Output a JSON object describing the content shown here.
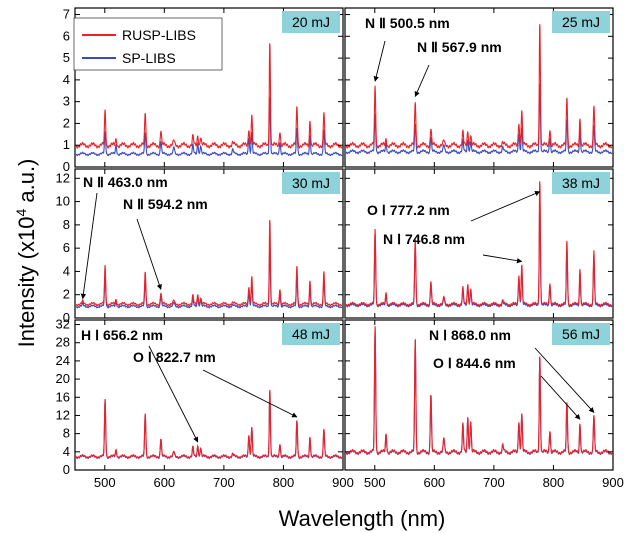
{
  "figure": {
    "xlabel": "Wavelength (nm)",
    "ylabel": "Intensity (x10",
    "ylabel_sup": "4",
    "ylabel_suffix": " a.u.)",
    "legend": [
      {
        "label": "RUSP-LIBS",
        "color": "#e8232a"
      },
      {
        "label": "SP-LIBS",
        "color": "#3b4bbd"
      }
    ],
    "energy_badge_color": "#8ed3d9"
  },
  "chart_data": [
    {
      "type": "line",
      "energy": "20 mJ",
      "xlim": [
        450,
        900
      ],
      "ylim": [
        0,
        7.3
      ],
      "yticks": [
        0,
        1,
        2,
        3,
        4,
        5,
        6,
        7
      ],
      "xticks": [
        500,
        600,
        700,
        800,
        900
      ],
      "baseline": {
        "RUSP-LIBS": 1.0,
        "SP-LIBS": 0.6
      },
      "peaks": [
        [
          500.5,
          2.6,
          1.6
        ],
        [
          519,
          1.3,
          1.0
        ],
        [
          567.9,
          2.5,
          1.6
        ],
        [
          594.2,
          1.7,
          1.2
        ],
        [
          616,
          1.2,
          0.9
        ],
        [
          648,
          1.4,
          1.0
        ],
        [
          656.2,
          1.5,
          1.1
        ],
        [
          661,
          1.4,
          1.0
        ],
        [
          715,
          1.1,
          0.8
        ],
        [
          742,
          1.8,
          1.4
        ],
        [
          746.8,
          2.4,
          1.6
        ],
        [
          777.2,
          5.8,
          3.3
        ],
        [
          794,
          1.7,
          1.2
        ],
        [
          822.7,
          2.8,
          1.8
        ],
        [
          844.6,
          2.2,
          1.5
        ],
        [
          868,
          2.5,
          1.7
        ]
      ],
      "annotations": []
    },
    {
      "type": "line",
      "energy": "25 mJ",
      "xlim": [
        450,
        900
      ],
      "ylim": [
        0,
        7.3
      ],
      "yticks": [
        0,
        1,
        2,
        3,
        4,
        5,
        6,
        7
      ],
      "xticks": [
        500,
        600,
        700,
        800,
        900
      ],
      "baseline": {
        "RUSP-LIBS": 1.0,
        "SP-LIBS": 0.7
      },
      "peaks": [
        [
          500.5,
          3.7,
          2.4
        ],
        [
          519,
          1.3,
          1.1
        ],
        [
          567.9,
          3.0,
          2.0
        ],
        [
          594.2,
          1.8,
          1.4
        ],
        [
          616,
          1.2,
          1.0
        ],
        [
          648,
          1.6,
          1.2
        ],
        [
          656.2,
          1.7,
          1.3
        ],
        [
          661,
          1.5,
          1.2
        ],
        [
          715,
          1.1,
          0.9
        ],
        [
          742,
          2.1,
          1.6
        ],
        [
          746.8,
          2.6,
          1.8
        ],
        [
          777.2,
          6.7,
          3.9
        ],
        [
          794,
          1.8,
          1.4
        ],
        [
          822.7,
          3.2,
          2.2
        ],
        [
          844.6,
          2.3,
          1.7
        ],
        [
          868,
          2.8,
          1.9
        ]
      ],
      "annotations": [
        {
          "text": "N Ⅱ 500.5 nm",
          "x": 500.5,
          "y": 3.8
        },
        {
          "text": "N Ⅱ 567.9 nm",
          "x": 567.9,
          "y": 3.1
        }
      ]
    },
    {
      "type": "line",
      "energy": "30 mJ",
      "xlim": [
        450,
        900
      ],
      "ylim": [
        0,
        12.8
      ],
      "yticks": [
        0,
        2,
        4,
        6,
        8,
        10,
        12
      ],
      "xticks": [
        500,
        600,
        700,
        800,
        900
      ],
      "baseline": {
        "RUSP-LIBS": 1.2,
        "SP-LIBS": 1.0
      },
      "peaks": [
        [
          463,
          1.4,
          1.2
        ],
        [
          500.5,
          4.5,
          3.6
        ],
        [
          519,
          1.6,
          1.4
        ],
        [
          567.9,
          4.0,
          3.2
        ],
        [
          594.2,
          2.2,
          1.9
        ],
        [
          616,
          1.5,
          1.3
        ],
        [
          648,
          1.9,
          1.6
        ],
        [
          656.2,
          2.1,
          1.8
        ],
        [
          661,
          1.8,
          1.6
        ],
        [
          715,
          1.3,
          1.1
        ],
        [
          742,
          2.8,
          2.2
        ],
        [
          746.8,
          3.6,
          2.9
        ],
        [
          777.2,
          8.6,
          6.4
        ],
        [
          794,
          2.6,
          2.1
        ],
        [
          822.7,
          4.5,
          3.6
        ],
        [
          844.6,
          3.3,
          2.7
        ],
        [
          868,
          4.0,
          3.2
        ]
      ],
      "annotations": [
        {
          "text": "N Ⅱ 463.0 nm",
          "x": 463,
          "y": 1.4
        },
        {
          "text": "N Ⅱ 594.2 nm",
          "x": 594.2,
          "y": 2.2
        }
      ]
    },
    {
      "type": "line",
      "energy": "38 mJ",
      "xlim": [
        450,
        900
      ],
      "ylim": [
        0,
        12.8
      ],
      "yticks": [
        0,
        2,
        4,
        6,
        8,
        10,
        12
      ],
      "xticks": [
        500,
        600,
        700,
        800,
        900
      ],
      "baseline": {
        "RUSP-LIBS": 1.2,
        "SP-LIBS": 1.1
      },
      "peaks": [
        [
          500.5,
          7.6,
          7.2
        ],
        [
          519,
          2.2,
          2.0
        ],
        [
          567.9,
          6.8,
          6.4
        ],
        [
          594.2,
          3.2,
          3.0
        ],
        [
          616,
          1.8,
          1.7
        ],
        [
          648,
          2.6,
          2.4
        ],
        [
          656.2,
          3.0,
          2.7
        ],
        [
          661,
          2.6,
          2.4
        ],
        [
          715,
          1.5,
          1.4
        ],
        [
          742,
          3.8,
          3.5
        ],
        [
          746.8,
          4.6,
          4.2
        ],
        [
          777.2,
          12.0,
          10.5
        ],
        [
          794,
          3.1,
          2.9
        ],
        [
          822.7,
          6.7,
          6.0
        ],
        [
          844.6,
          4.3,
          4.0
        ],
        [
          868,
          5.8,
          5.2
        ]
      ],
      "annotations": [
        {
          "text": "O Ⅰ 777.2 nm",
          "x": 777.2,
          "y": 10.6
        },
        {
          "text": "N Ⅰ 746.8 nm",
          "x": 746.8,
          "y": 4.6
        }
      ]
    },
    {
      "type": "line",
      "energy": "48 mJ",
      "xlim": [
        450,
        900
      ],
      "ylim": [
        0,
        33
      ],
      "yticks": [
        0,
        4,
        8,
        12,
        16,
        20,
        24,
        28,
        32
      ],
      "xticks": [
        500,
        600,
        700,
        800,
        900
      ],
      "baseline": {
        "RUSP-LIBS": 3.0,
        "SP-LIBS": 2.9
      },
      "peaks": [
        [
          500.5,
          15.5,
          15.3
        ],
        [
          519,
          4.5,
          4.4
        ],
        [
          567.9,
          12.5,
          12.3
        ],
        [
          594.2,
          7.0,
          6.9
        ],
        [
          616,
          4.0,
          3.9
        ],
        [
          648,
          5.0,
          4.9
        ],
        [
          656.2,
          5.5,
          5.4
        ],
        [
          661,
          5.0,
          4.9
        ],
        [
          715,
          3.5,
          3.4
        ],
        [
          742,
          8.0,
          7.9
        ],
        [
          746.8,
          9.5,
          9.4
        ],
        [
          777.2,
          18.0,
          17.5
        ],
        [
          794,
          6.0,
          5.9
        ],
        [
          822.7,
          11.0,
          10.8
        ],
        [
          844.6,
          7.5,
          7.4
        ],
        [
          868,
          9.0,
          8.8
        ]
      ],
      "annotations": [
        {
          "text": "H Ⅰ 656.2 nm",
          "x": 656.2,
          "y": 5.5
        },
        {
          "text": "O Ⅰ 822.7 nm",
          "x": 822.7,
          "y": 11.0
        }
      ]
    },
    {
      "type": "line",
      "energy": "56 mJ",
      "xlim": [
        450,
        900
      ],
      "ylim": [
        0,
        33
      ],
      "yticks": [
        0,
        4,
        8,
        12,
        16,
        20,
        24,
        28,
        32
      ],
      "xticks": [
        500,
        600,
        700,
        800,
        900
      ],
      "baseline": {
        "RUSP-LIBS": 4.0,
        "SP-LIBS": 3.9
      },
      "peaks": [
        [
          500.5,
          31.5,
          31.2
        ],
        [
          519,
          8.0,
          7.9
        ],
        [
          567.9,
          29.0,
          28.7
        ],
        [
          594.2,
          17.0,
          16.8
        ],
        [
          616,
          7.0,
          6.9
        ],
        [
          648,
          10.0,
          9.8
        ],
        [
          656.2,
          12.0,
          11.8
        ],
        [
          661,
          11.0,
          10.8
        ],
        [
          715,
          5.5,
          5.4
        ],
        [
          742,
          11.0,
          10.9
        ],
        [
          746.8,
          12.5,
          12.3
        ],
        [
          777.2,
          25.5,
          25.2
        ],
        [
          794,
          9.0,
          8.9
        ],
        [
          822.7,
          15.0,
          14.8
        ],
        [
          844.6,
          10.5,
          10.3
        ],
        [
          868,
          12.0,
          11.8
        ]
      ],
      "annotations": [
        {
          "text": "N Ⅰ 868.0 nm",
          "x": 868,
          "y": 12.0
        },
        {
          "text": "O Ⅰ 844.6 nm",
          "x": 844.6,
          "y": 10.5
        }
      ]
    }
  ]
}
